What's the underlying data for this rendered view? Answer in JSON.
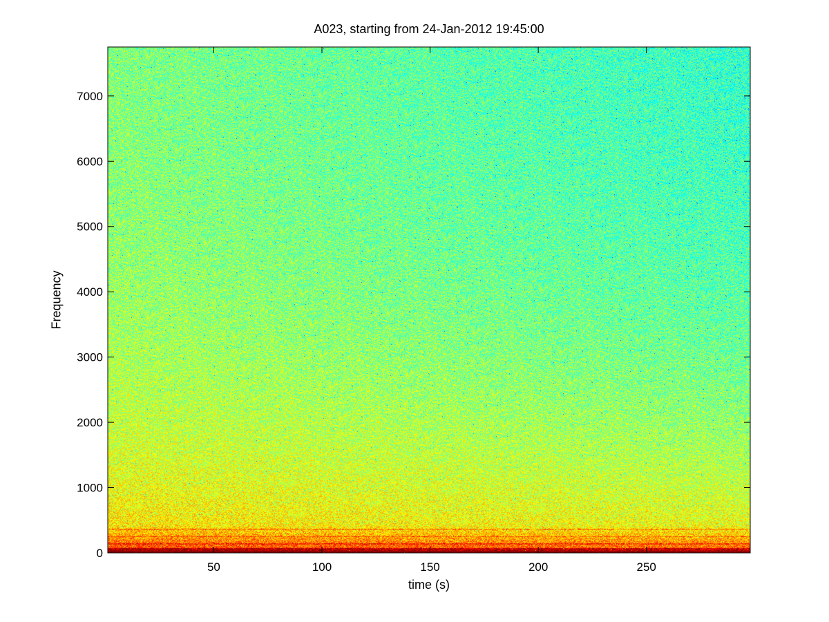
{
  "chart_data": {
    "type": "heatmap",
    "title": "A023, starting from 24-Jan-2012 19:45:00",
    "xlabel": "time (s)",
    "ylabel": "Frequency",
    "xlim": [
      1,
      298
    ],
    "ylim": [
      0,
      7750
    ],
    "x_ticks": [
      50,
      100,
      150,
      200,
      250
    ],
    "y_ticks": [
      0,
      1000,
      2000,
      3000,
      4000,
      5000,
      6000,
      7000
    ],
    "colormap": "jet",
    "grid": false,
    "legend": "none",
    "description_values": {
      "low_freq_band_hz": [
        0,
        400
      ],
      "low_freq_band_color": "red-orange",
      "mid_freq_color": "yellow",
      "high_freq_color": "cyan-green"
    }
  }
}
